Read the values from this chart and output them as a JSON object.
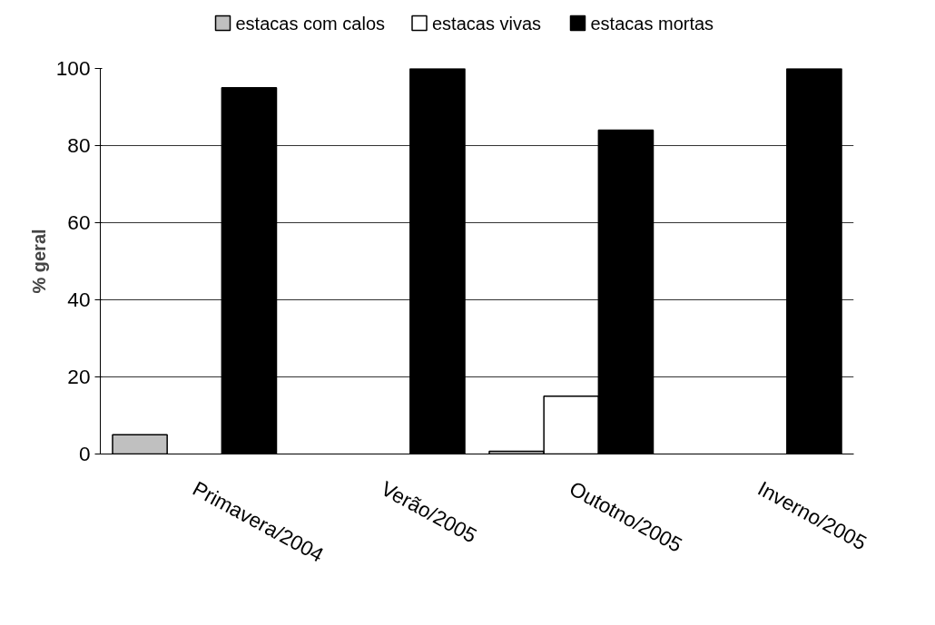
{
  "chart_data": {
    "type": "bar",
    "ylabel": "% geral",
    "categories": [
      "Primavera/2004",
      "Verão/2005",
      "Outotno/2005",
      "Inverno/2005"
    ],
    "series": [
      {
        "name": "estacas com calos",
        "color": "#c0c0c0",
        "values": [
          5,
          null,
          0.7,
          null
        ]
      },
      {
        "name": "estacas vivas",
        "color": "#ffffff",
        "values": [
          null,
          null,
          15,
          null
        ]
      },
      {
        "name": "estacas mortas",
        "color": "#000000",
        "values": [
          95,
          100,
          84,
          100
        ]
      }
    ],
    "ylim": [
      0,
      100
    ],
    "yticks": [
      0,
      20,
      40,
      60,
      80,
      100
    ],
    "grid": "y",
    "legend": "top"
  }
}
